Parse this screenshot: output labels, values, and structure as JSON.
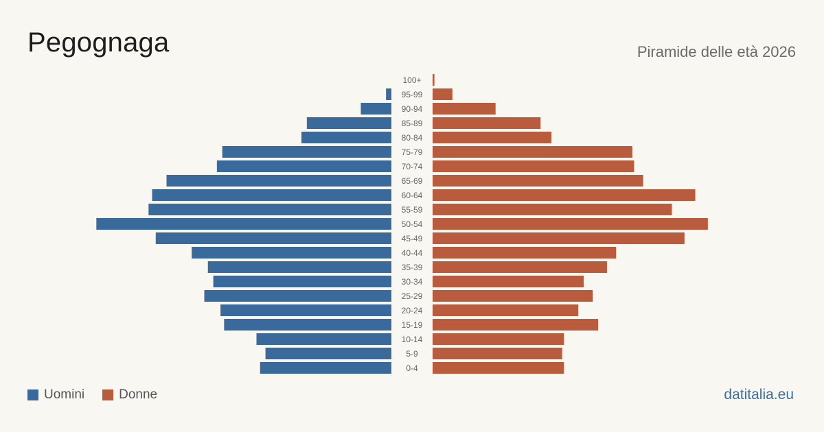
{
  "header": {
    "title": "Pegognaga",
    "subtitle": "Piramide delle età 2026"
  },
  "legend": {
    "men_label": "Uomini",
    "women_label": "Donne"
  },
  "footer": {
    "brand": "datitalia.eu"
  },
  "colors": {
    "men": "#3a6a9c",
    "women": "#b95c3d",
    "background": "#f9f7f2"
  },
  "chart_data": {
    "type": "bar",
    "orientation": "horizontal-pyramid",
    "title": "Pegognaga",
    "subtitle": "Piramide delle età 2026",
    "categories": [
      "100+",
      "95-99",
      "90-94",
      "85-89",
      "80-84",
      "75-79",
      "70-74",
      "65-69",
      "60-64",
      "55-59",
      "50-54",
      "45-49",
      "40-44",
      "35-39",
      "30-34",
      "25-29",
      "20-24",
      "15-19",
      "10-14",
      "5-9",
      "0-4"
    ],
    "series": [
      {
        "name": "Uomini",
        "values": [
          0,
          3,
          17,
          47,
          50,
          94,
          97,
          125,
          133,
          135,
          164,
          131,
          111,
          102,
          99,
          104,
          95,
          93,
          75,
          70,
          73
        ]
      },
      {
        "name": "Donne",
        "values": [
          1,
          11,
          35,
          60,
          66,
          111,
          112,
          117,
          146,
          133,
          153,
          140,
          102,
          97,
          84,
          89,
          81,
          92,
          73,
          72,
          73
        ]
      }
    ],
    "legend": "bottom-left",
    "grid": false
  }
}
